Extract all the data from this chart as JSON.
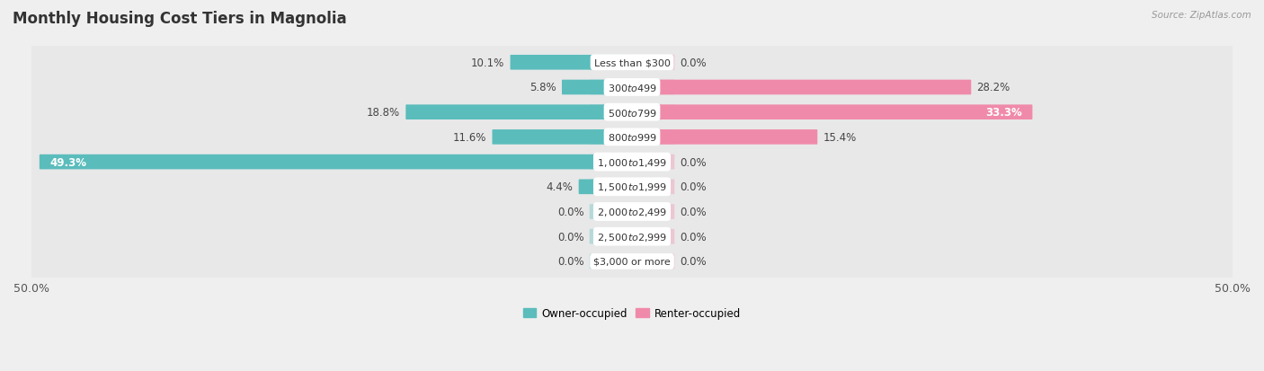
{
  "title": "Monthly Housing Cost Tiers in Magnolia",
  "source": "Source: ZipAtlas.com",
  "categories": [
    "Less than $300",
    "$300 to $499",
    "$500 to $799",
    "$800 to $999",
    "$1,000 to $1,499",
    "$1,500 to $1,999",
    "$2,000 to $2,499",
    "$2,500 to $2,999",
    "$3,000 or more"
  ],
  "owner_values": [
    10.1,
    5.8,
    18.8,
    11.6,
    49.3,
    4.4,
    0.0,
    0.0,
    0.0
  ],
  "renter_values": [
    0.0,
    28.2,
    33.3,
    15.4,
    0.0,
    0.0,
    0.0,
    0.0,
    0.0
  ],
  "owner_color": "#5bbcbc",
  "renter_color": "#f08aaa",
  "axis_max": 50.0,
  "stub_size": 3.5,
  "background_color": "#efefef",
  "bar_bg_color": "#ffffff",
  "row_bg_color": "#e8e8e8",
  "title_fontsize": 12,
  "value_fontsize": 8.5,
  "cat_fontsize": 8.0,
  "tick_fontsize": 9,
  "source_fontsize": 7.5,
  "legend_fontsize": 8.5
}
